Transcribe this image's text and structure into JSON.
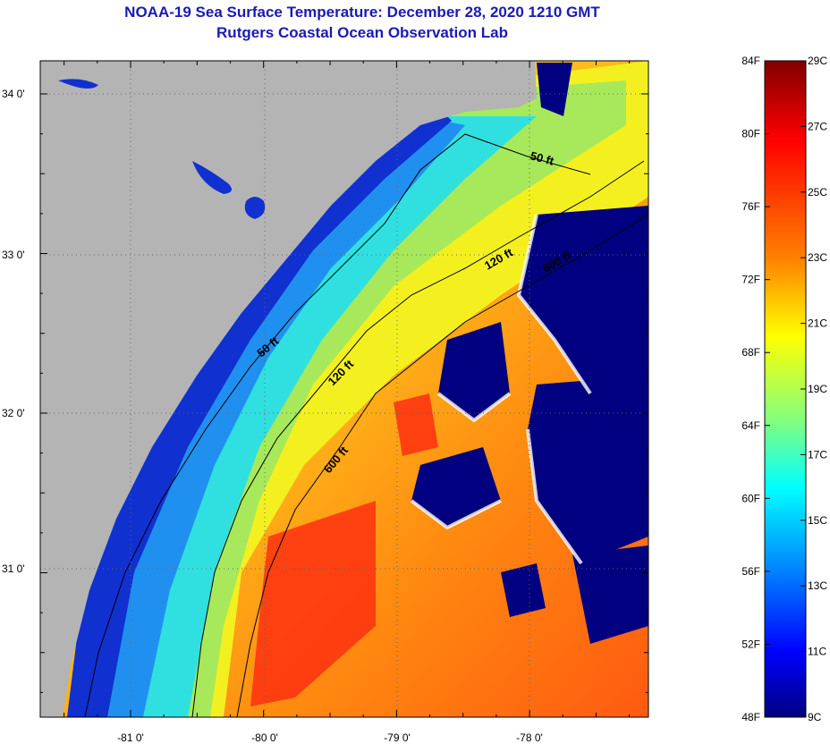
{
  "header": {
    "title": "NOAA-19 Sea Surface Temperature:  December 28, 2020 1210 GMT",
    "subtitle": "Rutgers Coastal Ocean Observation Lab"
  },
  "map": {
    "lat_ticks": [
      {
        "value": 34,
        "label": "34 0'"
      },
      {
        "value": 33,
        "label": "33 0'"
      },
      {
        "value": 32,
        "label": "32 0'"
      },
      {
        "value": 31,
        "label": "31 0'"
      }
    ],
    "lon_ticks": [
      {
        "value": -81,
        "label": "-81 0'"
      },
      {
        "value": -80,
        "label": "-80 0'"
      },
      {
        "value": -79,
        "label": "-79 0'"
      },
      {
        "value": -78,
        "label": "-78 0'"
      }
    ],
    "contour_labels": [
      "50 ft",
      "120 ft",
      "600 ft",
      "50 ft",
      "120 ft",
      "600 ft"
    ],
    "colors": {
      "land": "#b4b4b4",
      "cloud": "#000080",
      "frame": "#000000",
      "grid": "#7a7a7a"
    }
  },
  "colorbar": {
    "fahrenheit": [
      "84F",
      "80F",
      "76F",
      "72F",
      "68F",
      "64F",
      "60F",
      "56F",
      "52F",
      "48F"
    ],
    "celsius": [
      "29C",
      "27C",
      "25C",
      "23C",
      "21C",
      "19C",
      "17C",
      "15C",
      "13C",
      "11C",
      "9C"
    ],
    "gradient_stops": [
      "#800000",
      "#ff0000",
      "#ff8000",
      "#ffff00",
      "#80ff80",
      "#00ffff",
      "#0080ff",
      "#0000ff",
      "#000080"
    ]
  }
}
